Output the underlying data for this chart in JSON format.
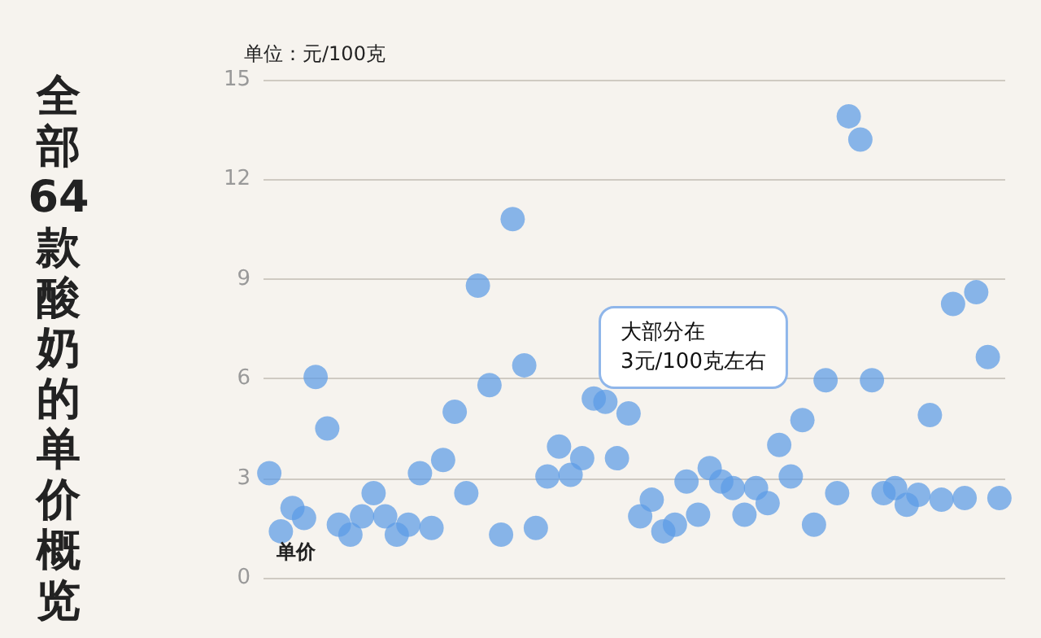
{
  "chart_data": {
    "type": "scatter",
    "title": "全部64款酸奶的单价概览",
    "ylabel": "单位：元/100克",
    "annotations": [
      "大部分在\n3元/100克左右"
    ],
    "categories": [
      null,
      null,
      null,
      null,
      null,
      null,
      null,
      null,
      null,
      null,
      null,
      null,
      null,
      null,
      null,
      null,
      null,
      null,
      null,
      null,
      null,
      null,
      null,
      null,
      null,
      null,
      null,
      null,
      null,
      null,
      null,
      null,
      null,
      null,
      null,
      null,
      null,
      null,
      null,
      null,
      null,
      null,
      null,
      null,
      null,
      null,
      null,
      null,
      null,
      null,
      null,
      null,
      null,
      null,
      null,
      null,
      null,
      null,
      null,
      null,
      null,
      null,
      null,
      null
    ],
    "series": [
      {
        "name": "单价",
        "color": "#5b9be6",
        "values": [
          3.15,
          1.4,
          2.1,
          1.8,
          6.05,
          4.5,
          1.6,
          1.3,
          1.85,
          2.55,
          1.85,
          1.3,
          1.6,
          3.15,
          1.5,
          3.55,
          5.0,
          2.55,
          8.8,
          5.8,
          1.3,
          10.8,
          6.4,
          1.5,
          3.05,
          3.95,
          3.1,
          3.6,
          5.4,
          5.3,
          3.6,
          4.95,
          1.85,
          2.35,
          1.4,
          1.6,
          2.9,
          1.9,
          3.3,
          2.9,
          2.7,
          1.9,
          2.7,
          2.25,
          4.0,
          3.05,
          4.75,
          1.6,
          5.95,
          2.55,
          13.9,
          13.2,
          5.95,
          2.55,
          2.7,
          2.2,
          2.5,
          4.9,
          2.35,
          8.25,
          2.4,
          8.6,
          6.65,
          2.4
        ]
      }
    ],
    "ylim": [
      0,
      15
    ],
    "yticks": [
      0,
      3,
      6,
      9,
      12,
      15
    ],
    "grid": "y",
    "legend": "bottom left",
    "marker": "circle",
    "tick_labels": "y"
  }
}
